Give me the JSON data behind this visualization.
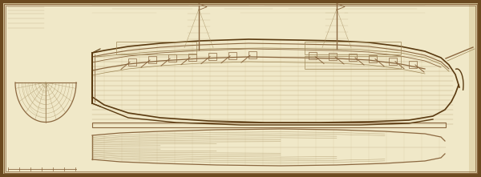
{
  "bg_color": "#f0e8c8",
  "paper_color": "#e8ddb0",
  "border_outer": "#8b7340",
  "border_dark": "#6b4a20",
  "line_dark": "#8b6840",
  "line_mid": "#a08858",
  "line_light": "#b8a878",
  "line_faint": "#c8b888",
  "edge_dark": "#5a3a10",
  "figsize": [
    6.0,
    2.21
  ],
  "dpi": 100
}
